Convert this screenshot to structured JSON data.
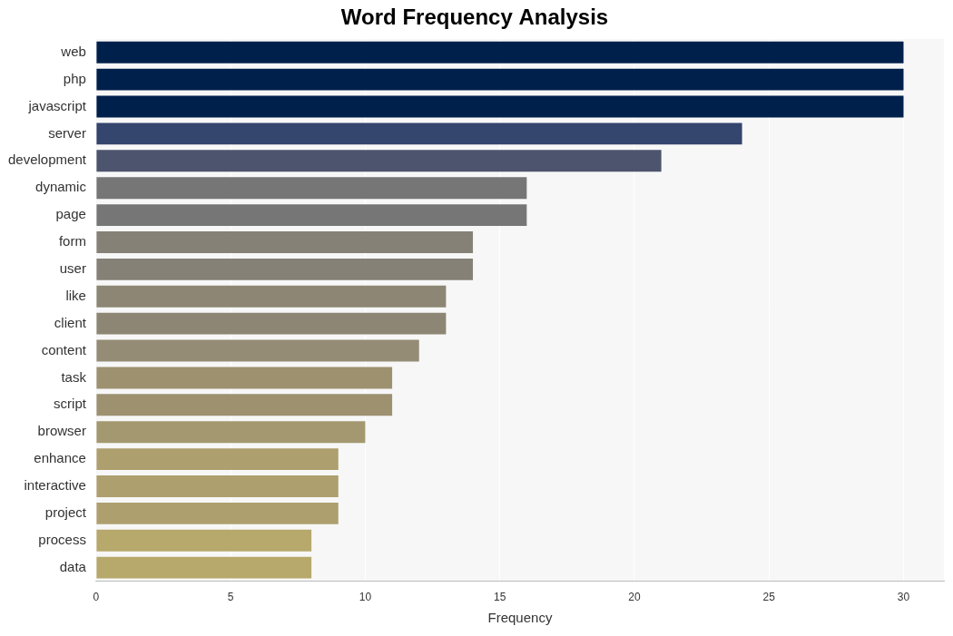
{
  "chart_data": {
    "type": "bar",
    "orientation": "horizontal",
    "title": "Word Frequency Analysis",
    "x_label": "Frequency",
    "categories": [
      "web",
      "php",
      "javascript",
      "server",
      "development",
      "dynamic",
      "page",
      "form",
      "user",
      "like",
      "client",
      "content",
      "task",
      "script",
      "browser",
      "enhance",
      "interactive",
      "project",
      "process",
      "data"
    ],
    "values": [
      30,
      30,
      30,
      24,
      21,
      16,
      16,
      14,
      14,
      13,
      13,
      12,
      11,
      11,
      10,
      9,
      9,
      9,
      8,
      8
    ],
    "colors": [
      "#00204c",
      "#00204c",
      "#00204c",
      "#34456e",
      "#4d556e",
      "#767676",
      "#767676",
      "#858177",
      "#858177",
      "#8d8674",
      "#8d8674",
      "#958c76",
      "#9d9170",
      "#9d9170",
      "#a39870",
      "#ae9f6e",
      "#ae9f6e",
      "#ae9f6e",
      "#b7a86b",
      "#b7a86b"
    ],
    "xlim": [
      0,
      31.5
    ],
    "xticks": [
      0,
      5,
      10,
      15,
      20,
      25,
      30
    ],
    "grid": true
  }
}
